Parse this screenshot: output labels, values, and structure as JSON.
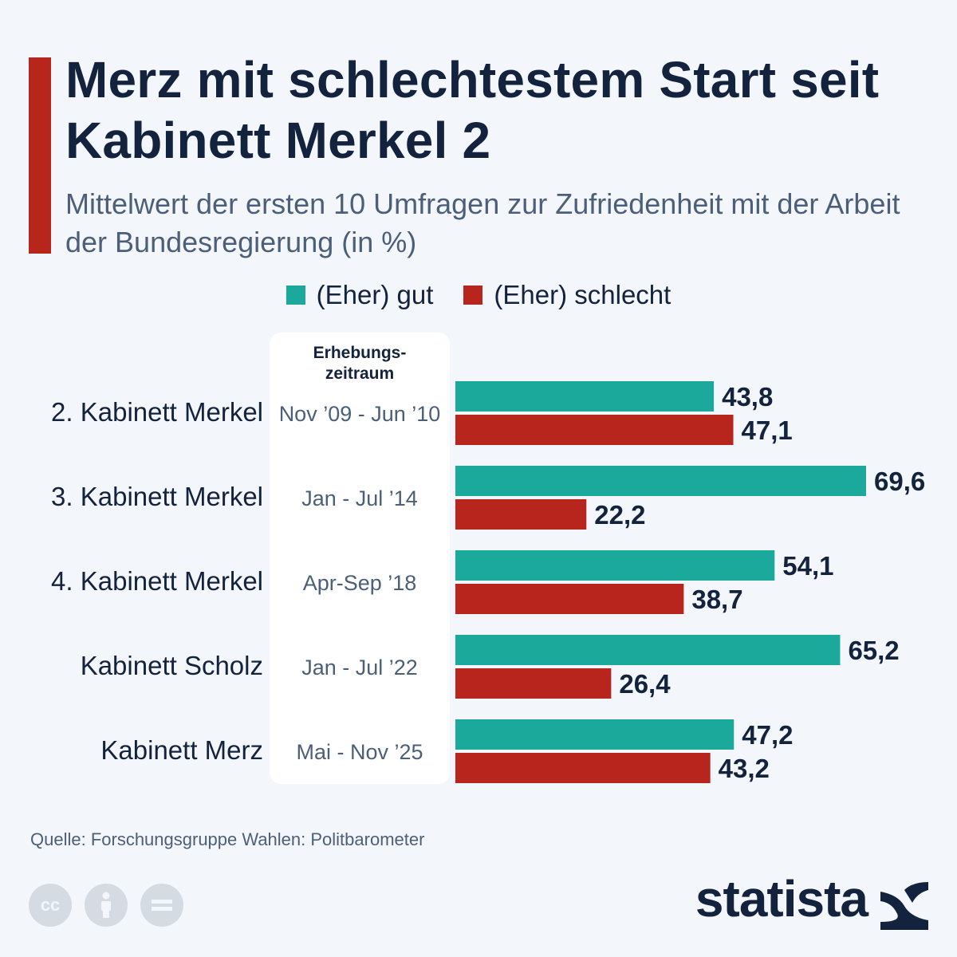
{
  "title": "Merz mit schlechtestem Start seit Kabinett Merkel 2",
  "subtitle": "Mittelwert der ersten 10 Umfragen zur Zufriedenheit mit der Arbeit der Bundesregierung (in %)",
  "legend": [
    {
      "label": "(Eher) gut",
      "color": "#1aa99a"
    },
    {
      "label": "(Eher) schlecht",
      "color": "#b8251d"
    }
  ],
  "period_header": [
    "Erhebungs-",
    "zeitraum"
  ],
  "chart_data": {
    "type": "bar",
    "orientation": "horizontal",
    "categories": [
      "2. Kabinett Merkel",
      "3. Kabinett Merkel",
      "4. Kabinett Merkel",
      "Kabinett Scholz",
      "Kabinett Merz"
    ],
    "periods": [
      "Nov ’09 - Jun ’10",
      "Jan - Jul ’14",
      "Apr-Sep ’18",
      "Jan - Jul ’22",
      "Mai - Nov ’25"
    ],
    "series": [
      {
        "name": "(Eher) gut",
        "color": "#1aa99a",
        "values": [
          43.8,
          69.6,
          54.1,
          65.2,
          47.2
        ],
        "labels": [
          "43,8",
          "69,6",
          "54,1",
          "65,2",
          "47,2"
        ]
      },
      {
        "name": "(Eher) schlecht",
        "color": "#b8251d",
        "values": [
          47.1,
          22.2,
          38.7,
          26.4,
          43.2
        ],
        "labels": [
          "47,1",
          "22,2",
          "38,7",
          "26,4",
          "43,2"
        ]
      }
    ],
    "xlim": [
      0,
      70
    ],
    "grid": false,
    "legend_position": "top"
  },
  "source": "Quelle: Forschungsgruppe Wahlen: Politbarometer",
  "brand": "statista",
  "license_icons": [
    "cc-icon",
    "attribution-icon",
    "no-derivatives-icon"
  ]
}
